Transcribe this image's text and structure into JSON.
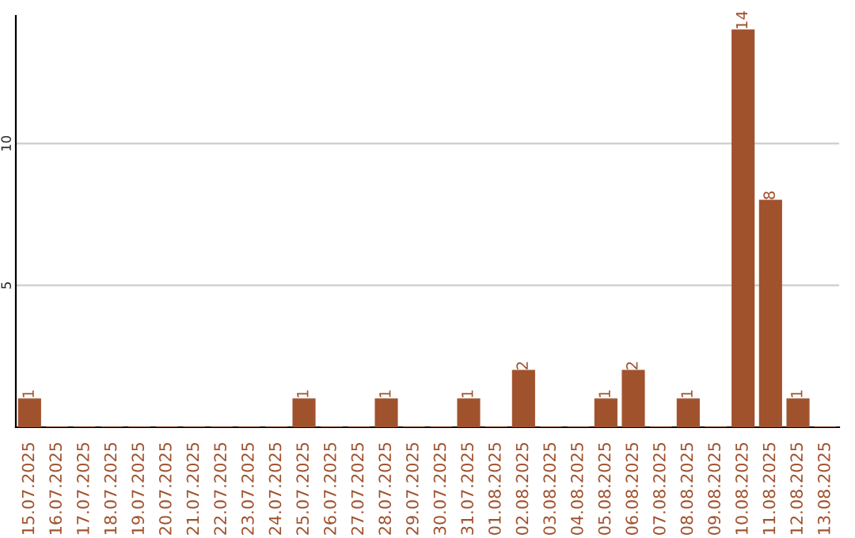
{
  "chart_data": {
    "type": "bar",
    "categories": [
      "15.07.2025",
      "16.07.2025",
      "17.07.2025",
      "18.07.2025",
      "19.07.2025",
      "20.07.2025",
      "21.07.2025",
      "22.07.2025",
      "23.07.2025",
      "24.07.2025",
      "25.07.2025",
      "26.07.2025",
      "27.07.2025",
      "28.07.2025",
      "29.07.2025",
      "30.07.2025",
      "31.07.2025",
      "01.08.2025",
      "02.08.2025",
      "03.08.2025",
      "04.08.2025",
      "05.08.2025",
      "06.08.2025",
      "07.08.2025",
      "08.08.2025",
      "09.08.2025",
      "10.08.2025",
      "11.08.2025",
      "12.08.2025",
      "13.08.2025"
    ],
    "values": [
      1,
      0,
      0,
      0,
      0,
      0,
      0,
      0,
      0,
      0,
      1,
      0,
      0,
      1,
      0,
      0,
      1,
      0,
      2,
      0,
      0,
      1,
      2,
      0,
      1,
      0,
      14,
      8,
      1,
      0
    ],
    "value_labels": [
      "1",
      null,
      null,
      null,
      null,
      null,
      null,
      null,
      null,
      null,
      "1",
      null,
      null,
      "1",
      null,
      null,
      "1",
      null,
      "2",
      null,
      null,
      "1",
      "2",
      null,
      "1",
      null,
      "14",
      "8",
      "1",
      null
    ],
    "color": "#a0522d",
    "ylim": [
      0,
      14.5
    ],
    "yticks": [
      {
        "value": 5,
        "label": "5"
      },
      {
        "value": 10,
        "label": "10"
      }
    ],
    "grid": "y"
  }
}
